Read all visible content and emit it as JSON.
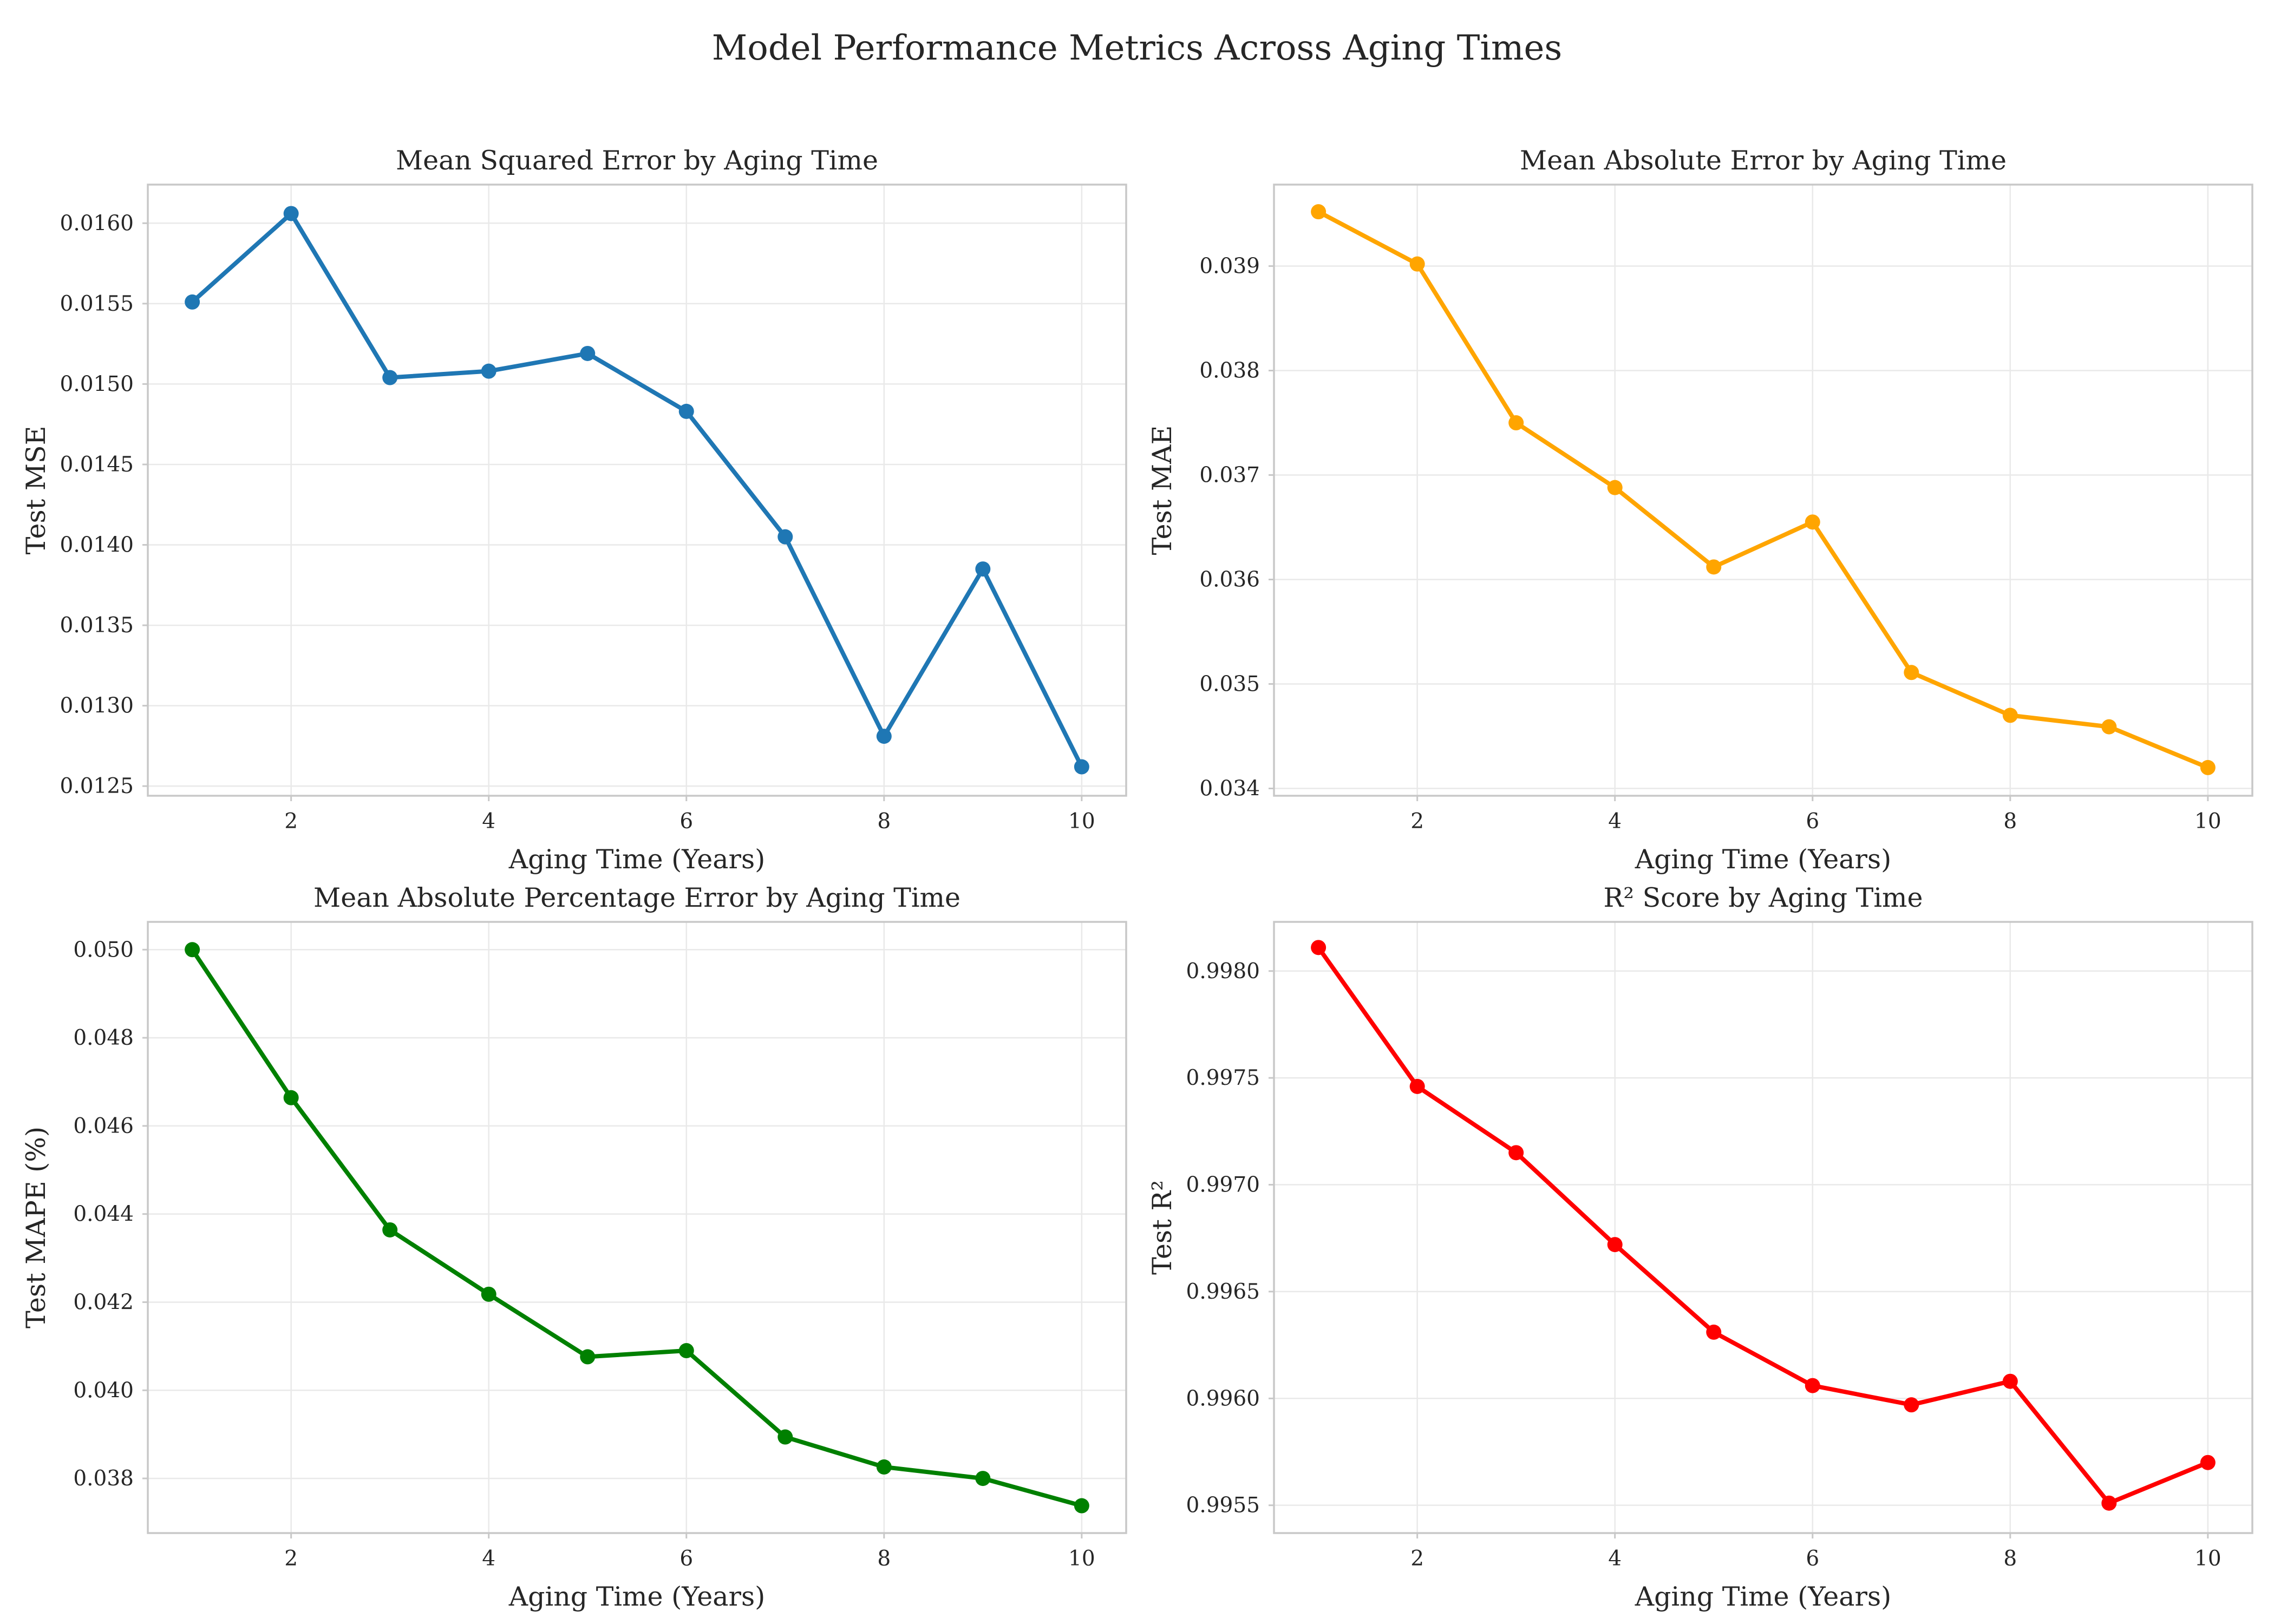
{
  "figure": {
    "title": "Model Performance Metrics Across Aging Times"
  },
  "chart_data": [
    {
      "type": "line",
      "title": "Mean Squared Error by Aging Time",
      "xlabel": "Aging Time (Years)",
      "ylabel": "Test MSE",
      "color": "#1f77b4",
      "x": [
        1,
        2,
        3,
        4,
        5,
        6,
        7,
        8,
        9,
        10
      ],
      "y": [
        0.01551,
        0.01606,
        0.01504,
        0.01508,
        0.01519,
        0.01483,
        0.01405,
        0.01281,
        0.01385,
        0.01262
      ],
      "xlim": [
        0.55,
        10.45
      ],
      "ylim": [
        0.01244,
        0.01624
      ],
      "xticks": [
        2,
        4,
        6,
        8,
        10
      ],
      "xtick_labels": [
        "2",
        "4",
        "6",
        "8",
        "10"
      ],
      "yticks": [
        0.0125,
        0.013,
        0.0135,
        0.014,
        0.0145,
        0.015,
        0.0155,
        0.016
      ],
      "ytick_labels": [
        "0.0125",
        "0.0130",
        "0.0135",
        "0.0140",
        "0.0145",
        "0.0150",
        "0.0155",
        "0.0160"
      ],
      "grid": true
    },
    {
      "type": "line",
      "title": "Mean Absolute Error by Aging Time",
      "xlabel": "Aging Time (Years)",
      "ylabel": "Test MAE",
      "color": "#ffa500",
      "x": [
        1,
        2,
        3,
        4,
        5,
        6,
        7,
        8,
        9,
        10
      ],
      "y": [
        0.03952,
        0.03902,
        0.0375,
        0.03688,
        0.03612,
        0.03655,
        0.03511,
        0.0347,
        0.03459,
        0.0342
      ],
      "xlim": [
        0.55,
        10.45
      ],
      "ylim": [
        0.03393,
        0.03978
      ],
      "xticks": [
        2,
        4,
        6,
        8,
        10
      ],
      "xtick_labels": [
        "2",
        "4",
        "6",
        "8",
        "10"
      ],
      "yticks": [
        0.034,
        0.035,
        0.036,
        0.037,
        0.038,
        0.039
      ],
      "ytick_labels": [
        "0.034",
        "0.035",
        "0.036",
        "0.037",
        "0.038",
        "0.039"
      ],
      "grid": true
    },
    {
      "type": "line",
      "title": "Mean Absolute Percentage Error by Aging Time",
      "xlabel": "Aging Time (Years)",
      "ylabel": "Test MAPE (%)",
      "color": "#008000",
      "x": [
        1,
        2,
        3,
        4,
        5,
        6,
        7,
        8,
        9,
        10
      ],
      "y": [
        0.05,
        0.04664,
        0.04364,
        0.04218,
        0.04076,
        0.0409,
        0.03894,
        0.03826,
        0.038,
        0.03738
      ],
      "xlim": [
        0.55,
        10.45
      ],
      "ylim": [
        0.03676,
        0.05063
      ],
      "xticks": [
        2,
        4,
        6,
        8,
        10
      ],
      "xtick_labels": [
        "2",
        "4",
        "6",
        "8",
        "10"
      ],
      "yticks": [
        0.038,
        0.04,
        0.042,
        0.044,
        0.046,
        0.048,
        0.05
      ],
      "ytick_labels": [
        "0.038",
        "0.040",
        "0.042",
        "0.044",
        "0.046",
        "0.048",
        "0.050"
      ],
      "grid": true
    },
    {
      "type": "line",
      "title": "R² Score by Aging Time",
      "xlabel": "Aging Time (Years)",
      "ylabel": "Test R²",
      "color": "#ff0000",
      "x": [
        1,
        2,
        3,
        4,
        5,
        6,
        7,
        8,
        9,
        10
      ],
      "y": [
        0.99811,
        0.99746,
        0.99715,
        0.99672,
        0.99631,
        0.99606,
        0.99597,
        0.99608,
        0.99551,
        0.9957
      ],
      "xlim": [
        0.55,
        10.45
      ],
      "ylim": [
        0.99537,
        0.99823
      ],
      "xticks": [
        2,
        4,
        6,
        8,
        10
      ],
      "xtick_labels": [
        "2",
        "4",
        "6",
        "8",
        "10"
      ],
      "yticks": [
        0.9955,
        0.996,
        0.9965,
        0.997,
        0.9975,
        0.998
      ],
      "ytick_labels": [
        "0.9955",
        "0.9960",
        "0.9965",
        "0.9970",
        "0.9975",
        "0.9980"
      ],
      "grid": true
    }
  ]
}
